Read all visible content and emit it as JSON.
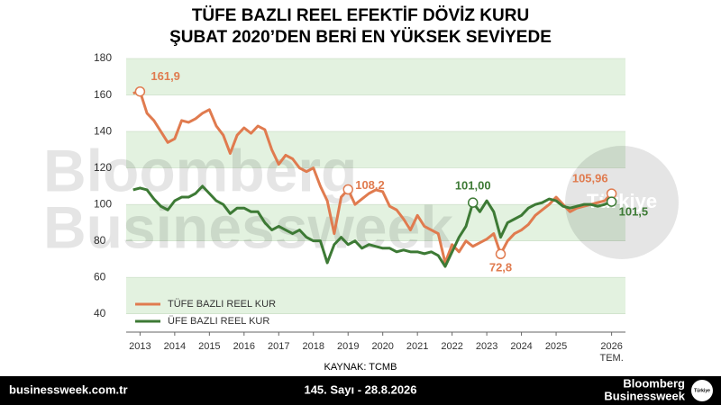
{
  "chart_data": {
    "type": "line",
    "title": [
      "TÜFE BAZLI REEL EFEKTİF DÖVİZ KURU",
      "ŞUBAT 2020’DEN BERİ EN YÜKSEK SEVİYEDE"
    ],
    "x": [
      2012.8,
      2013.0,
      2013.2,
      2013.4,
      2013.6,
      2013.8,
      2014.0,
      2014.2,
      2014.4,
      2014.6,
      2014.8,
      2015.0,
      2015.2,
      2015.4,
      2015.6,
      2015.8,
      2016.0,
      2016.2,
      2016.4,
      2016.6,
      2016.8,
      2017.0,
      2017.2,
      2017.4,
      2017.6,
      2017.8,
      2018.0,
      2018.2,
      2018.4,
      2018.6,
      2018.8,
      2019.0,
      2019.2,
      2019.4,
      2019.6,
      2019.8,
      2020.0,
      2020.2,
      2020.4,
      2020.6,
      2020.8,
      2021.0,
      2021.2,
      2021.4,
      2021.6,
      2021.8,
      2022.0,
      2022.2,
      2022.4,
      2022.6,
      2022.8,
      2023.0,
      2023.2,
      2023.4,
      2023.6,
      2023.8,
      2024.0,
      2024.2,
      2024.4,
      2024.6,
      2024.8,
      2025.0,
      2025.2,
      2025.4,
      2025.6,
      2025.8,
      2026.0,
      2026.2,
      2026.4,
      2026.6
    ],
    "series": [
      {
        "name": "TÜFE BAZLI REEL KUR",
        "color": "#e07b4f",
        "values": [
          161,
          161.9,
          150,
          146,
          140,
          134,
          136,
          146,
          145,
          147,
          150,
          152,
          143,
          138,
          128,
          138,
          142,
          139,
          143,
          141,
          130,
          122,
          127,
          125,
          120,
          118,
          120,
          110,
          102,
          84,
          104,
          108.2,
          100,
          103,
          106,
          108,
          107,
          99,
          97,
          92,
          86,
          94,
          88,
          86,
          84,
          68,
          78,
          74,
          80,
          77,
          79,
          81,
          84,
          72.8,
          80,
          84,
          86,
          89,
          94,
          97,
          100,
          104,
          100,
          96,
          98,
          99,
          100,
          101,
          102,
          105.96
        ]
      },
      {
        "name": "ÜFE BAZLI REEL KUR",
        "color": "#3d7a35",
        "values": [
          108,
          109,
          108,
          103,
          99,
          97,
          102,
          104,
          104,
          106,
          110,
          106,
          102,
          100,
          95,
          98,
          98,
          96,
          96,
          90,
          86,
          88,
          86,
          84,
          86,
          82,
          80,
          80,
          68,
          78,
          82,
          78,
          80,
          76,
          78,
          77,
          76,
          76,
          74,
          75,
          74,
          74,
          73,
          74,
          72,
          66,
          74,
          82,
          88,
          101,
          96,
          102,
          96,
          82,
          90,
          92,
          94,
          98,
          100,
          101,
          103,
          102,
          99,
          98,
          99,
          100,
          100,
          99,
          100,
          101.5
        ]
      }
    ],
    "annotations": [
      {
        "x": 2013.0,
        "value": 161.9,
        "label": "161,9",
        "color": "#e07b4f"
      },
      {
        "x": 2019.0,
        "value": 108.2,
        "label": "108,2",
        "color": "#e07b4f"
      },
      {
        "x": 2023.4,
        "value": 72.8,
        "label": "72,8",
        "color": "#e07b4f"
      },
      {
        "x": 2026.6,
        "value": 105.96,
        "label": "105,96",
        "color": "#e07b4f"
      },
      {
        "x": 2022.6,
        "value": 101,
        "label": "101,00",
        "color": "#3d7a35"
      },
      {
        "x": 2026.6,
        "value": 101.5,
        "label": "101,5",
        "color": "#3d7a35"
      }
    ],
    "xlim": [
      2012.6,
      2027.0
    ],
    "xticks": [
      2013,
      2014,
      2015,
      2016,
      2017,
      2018,
      2019,
      2020,
      2021,
      2022,
      2023,
      2024,
      2025,
      {
        "value": 2026.6,
        "label": "2026 TEM."
      }
    ],
    "ylim": [
      30,
      182
    ],
    "yticks": [
      40,
      60,
      80,
      100,
      120,
      140,
      160,
      180
    ],
    "grid": "bands",
    "band_color": "#e3f2e0",
    "source": "KAYNAK: TCMB",
    "watermark": [
      "Bloomberg",
      "Businessweek",
      "Türkiye"
    ]
  },
  "footer": {
    "site": "businessweek.com.tr",
    "issue": "145. Sayı - 28.8.2026",
    "brand": [
      "Bloomberg",
      "Businessweek"
    ],
    "badge": "Türkiye"
  }
}
